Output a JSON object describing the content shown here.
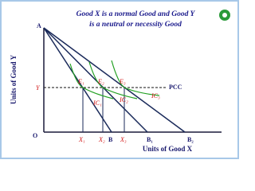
{
  "title": [
    "Good X is a normal Good and Good Y",
    "is a neutral or necessity  Good"
  ],
  "axes": {
    "y_label": "Units of Good Y",
    "x_label": "Units of Good X",
    "origin": "O",
    "y_point": "A",
    "y_level": "Y"
  },
  "budget_points": [
    "B",
    "B₁",
    "B₂"
  ],
  "quantities": [
    "X₁",
    "X₂",
    "X₃"
  ],
  "equilibria": [
    "E₁",
    "E₂",
    "E₃"
  ],
  "curves": [
    "IC₁",
    "IC₂",
    "IC₃"
  ],
  "path_label": "PCC"
}
